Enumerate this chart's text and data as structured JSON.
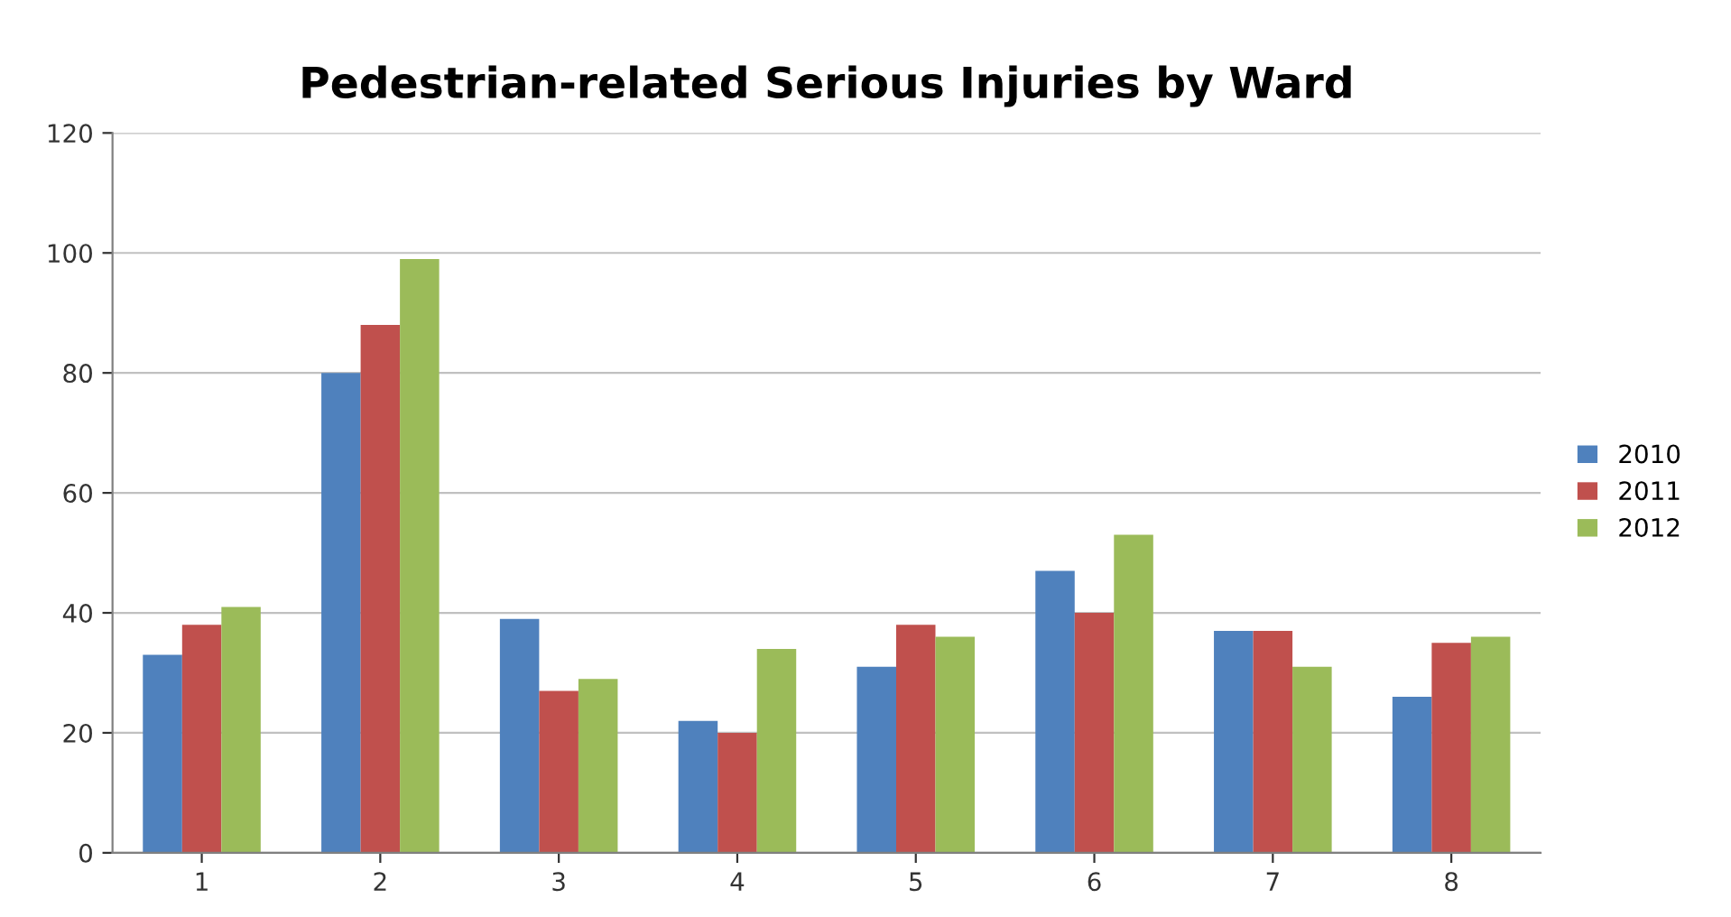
{
  "chart_data": {
    "type": "bar",
    "title": "Pedestrian-related Serious Injuries by Ward",
    "categories": [
      "1",
      "2",
      "3",
      "4",
      "5",
      "6",
      "7",
      "8"
    ],
    "series": [
      {
        "name": "2010",
        "color": "#4f81bd",
        "values": [
          33,
          80,
          39,
          22,
          31,
          47,
          37,
          26
        ]
      },
      {
        "name": "2011",
        "color": "#c0504d",
        "values": [
          38,
          88,
          27,
          20,
          38,
          40,
          37,
          35
        ]
      },
      {
        "name": "2012",
        "color": "#9bbb59",
        "values": [
          41,
          99,
          29,
          34,
          36,
          53,
          31,
          36
        ]
      }
    ],
    "ylim": [
      0,
      120
    ],
    "yticks": [
      0,
      20,
      40,
      60,
      80,
      100,
      120
    ],
    "grid": "y",
    "legend": "right"
  }
}
